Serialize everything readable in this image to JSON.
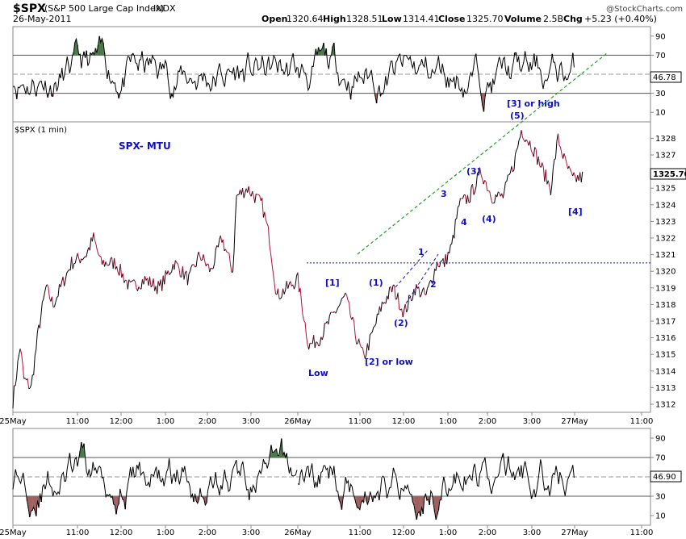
{
  "header": {
    "symbol": "$SPX",
    "name": "(S&P 500 Large Cap Index)",
    "exchange": "INDX",
    "date": "26-May-2011",
    "open_label": "Open",
    "open": "1320.64",
    "high_label": "High",
    "high": "1328.51",
    "low_label": "Low",
    "low": "1314.41",
    "close_label": "Close",
    "close": "1325.70",
    "volume_label": "Volume",
    "volume": "2.5B",
    "chg_label": "Chg",
    "chg": "+5.23 (+0.40%)",
    "watermark": "@StockCharts.com"
  },
  "main_panel": {
    "series_label": "$SPX (1 min)",
    "annotation_title": "SPX- MTU",
    "last_value": "1325.70",
    "wave_labels": [
      "[1]",
      "Low",
      "[2] or low",
      "(1)",
      "(2)",
      "1",
      "2",
      "3",
      "4",
      "(3)",
      "(4)",
      "(5)",
      "[3] or high",
      "[4]"
    ]
  },
  "upper_indicator": {
    "last_value": "46.78"
  },
  "lower_indicator": {
    "last_value": "46.90"
  },
  "colors": {
    "up_bar": "#000000",
    "down_bar": "#b0103a",
    "wave_label": "#1010c8",
    "trendline": "#22a022",
    "overbought_fill": "#4a7a4a",
    "oversold_fill": "#a06060"
  },
  "chart_data": {
    "type": "line",
    "title": "$SPX (S&P 500 Large Cap Index) INDX",
    "ylim": [
      1311.5,
      1329
    ],
    "yticks": [
      1312,
      1313,
      1314,
      1315,
      1316,
      1317,
      1318,
      1319,
      1320,
      1321,
      1322,
      1323,
      1324,
      1325,
      1326,
      1327,
      1328
    ],
    "xticks": [
      "25May",
      "11:00",
      "12:00",
      "1:00",
      "2:00",
      "3:00",
      "26May",
      "11:00",
      "12:00",
      "1:00",
      "2:00",
      "3:00",
      "27May",
      "11:00"
    ],
    "series": [
      {
        "x": [
          "25May 10:00",
          "25May 10:10",
          "25May 10:15",
          "25May 10:25",
          "25May 10:35",
          "25May 10:45",
          "25May 10:55",
          "25May 11:05",
          "25May 11:20",
          "25May 11:40",
          "25May 11:50",
          "25May 12:00",
          "25May 12:20",
          "25May 12:40",
          "25May 1:00",
          "25May 1:20",
          "25May 1:40",
          "25May 2:00",
          "25May 2:15",
          "25May 2:30",
          "25May 2:45",
          "25May 3:00",
          "25May 3:05",
          "25May 3:20",
          "25May 3:40",
          "25May 3:50",
          "25May 4:00",
          "26May 9:30",
          "26May 9:45",
          "26May 10:00",
          "26May 10:20",
          "26May 10:35",
          "26May 10:50",
          "26May 11:00",
          "26May 11:10",
          "26May 11:25",
          "26May 11:40",
          "26May 11:55",
          "26May 12:10",
          "26May 12:25",
          "26May 12:40",
          "26May 12:50",
          "26May 1:00",
          "26May 1:10",
          "26May 1:25",
          "26May 1:40",
          "26May 1:55",
          "26May 2:10",
          "26May 2:25",
          "26May 2:35",
          "26May 2:50",
          "26May 3:05",
          "26May 3:15",
          "26May 3:25",
          "26May 3:35",
          "26May 3:45",
          "26May 4:00"
        ],
        "y": [
          1312.2,
          1315.5,
          1313.5,
          1313.0,
          1316.5,
          1319.0,
          1318.0,
          1319.0,
          1320.5,
          1321.0,
          1322.0,
          1320.5,
          1320.5,
          1319.0,
          1319.5,
          1319.0,
          1320.5,
          1319.5,
          1321.0,
          1320.0,
          1322.0,
          1320.0,
          1324.5,
          1325.0,
          1324.0,
          1322.0,
          1318.5,
          1319.5,
          1315.5,
          1316.0,
          1317.5,
          1318.5,
          1316.0,
          1314.8,
          1316.0,
          1318.0,
          1319.0,
          1317.5,
          1319.0,
          1318.5,
          1320.5,
          1320.5,
          1321.5,
          1324.0,
          1324.5,
          1326.0,
          1324.5,
          1324.5,
          1326.5,
          1328.5,
          1327.5,
          1326.0,
          1325.0,
          1328.0,
          1326.5,
          1325.5,
          1325.7
        ]
      }
    ],
    "upper_indicator": {
      "ylim": [
        0,
        100
      ],
      "levels": [
        30,
        70
      ],
      "yticks": [
        10,
        30,
        50,
        70,
        90
      ],
      "last": 46.78
    },
    "lower_indicator": {
      "ylim": [
        0,
        100
      ],
      "levels": [
        30,
        70
      ],
      "yticks": [
        10,
        30,
        50,
        70,
        90
      ],
      "last": 46.9
    },
    "resistance_line": 1320.5,
    "grid": false
  }
}
